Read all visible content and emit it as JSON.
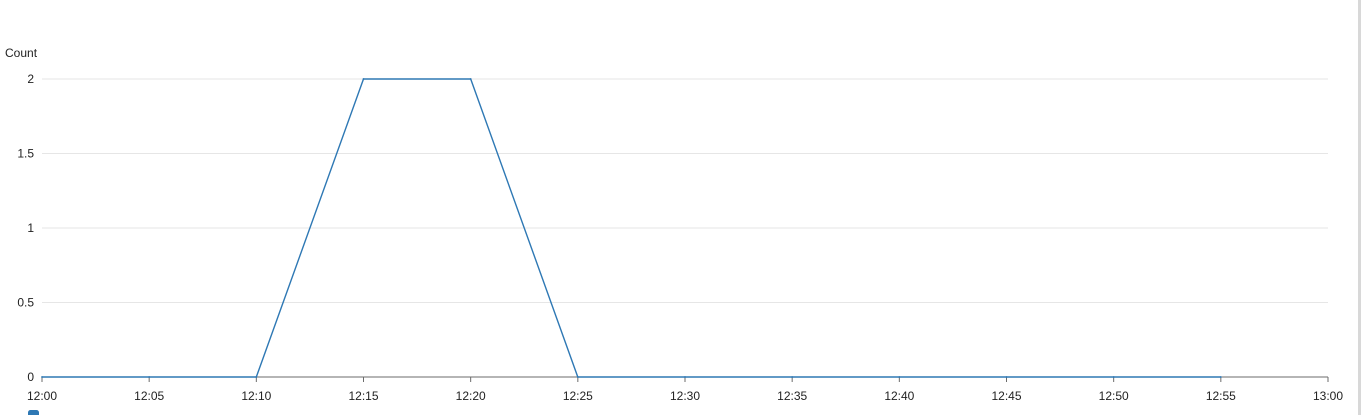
{
  "chart_data": {
    "type": "line",
    "title": "",
    "xlabel": "",
    "ylabel": "Count",
    "x_ticks": [
      "12:00",
      "12:05",
      "12:10",
      "12:15",
      "12:20",
      "12:25",
      "12:30",
      "12:35",
      "12:40",
      "12:45",
      "12:50",
      "12:55",
      "13:00"
    ],
    "y_ticks": [
      "0",
      "0.5",
      "1",
      "1.5",
      "2"
    ],
    "ylim": [
      0,
      2
    ],
    "xlim": [
      "12:00",
      "13:00"
    ],
    "grid": true,
    "series": [
      {
        "color": "#2e78b4",
        "x": [
          "12:00",
          "12:05",
          "12:10",
          "12:15",
          "12:20",
          "12:25",
          "12:30",
          "12:35",
          "12:40",
          "12:45",
          "12:50",
          "12:55"
        ],
        "values": [
          0,
          0,
          0,
          2,
          2,
          0,
          0,
          0,
          0,
          0,
          0,
          0
        ]
      }
    ]
  }
}
